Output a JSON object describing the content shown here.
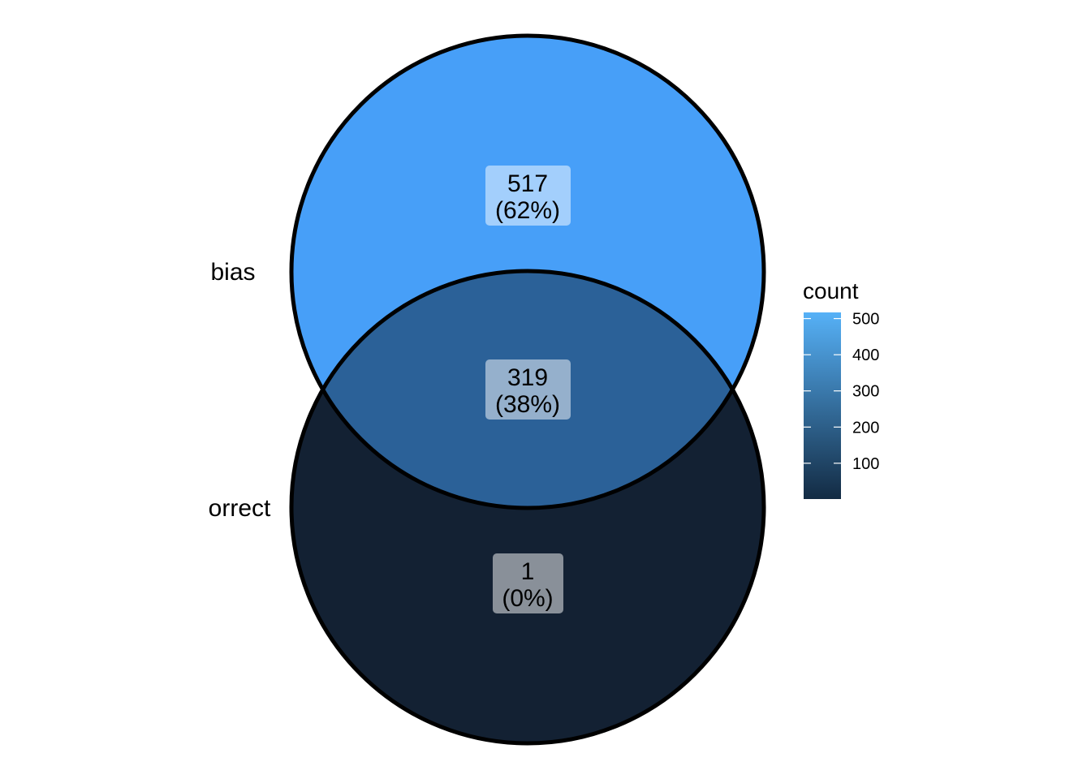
{
  "sets": [
    {
      "label": "bias"
    },
    {
      "label": "orrect"
    }
  ],
  "regions": [
    {
      "id": "bias-only",
      "count": "517",
      "percent": "(62%)",
      "value": 517,
      "color": "#479FF8"
    },
    {
      "id": "intersection",
      "count": "319",
      "percent": "(38%)",
      "value": 319,
      "color": "#2B6198"
    },
    {
      "id": "orrect-only",
      "count": "1",
      "percent": "(0%)",
      "value": 1,
      "color": "#132133"
    }
  ],
  "legend": {
    "title": "count",
    "min": 1,
    "max": 517,
    "ticks": [
      {
        "label": "100",
        "value": 100
      },
      {
        "label": "200",
        "value": 200
      },
      {
        "label": "300",
        "value": 300
      },
      {
        "label": "400",
        "value": 400
      },
      {
        "label": "500",
        "value": 500
      }
    ],
    "color_low": "#132B43",
    "color_high": "#56B1F7"
  }
}
